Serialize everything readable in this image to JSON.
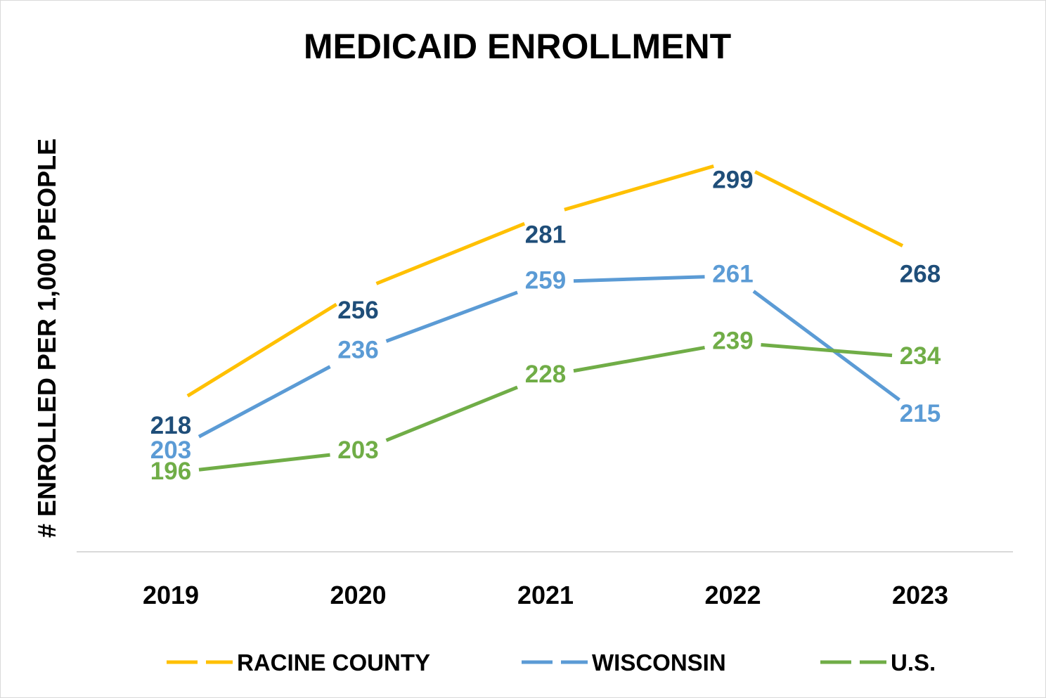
{
  "chart_data": {
    "type": "line",
    "title": "MEDICAID ENROLLMENT",
    "xlabel": "",
    "ylabel": "# ENROLLED PER 1,000 PEOPLE",
    "categories": [
      "2019",
      "2020",
      "2021",
      "2022",
      "2023"
    ],
    "ylim": [
      170,
      310
    ],
    "grid": false,
    "legend": "bottom",
    "series": [
      {
        "name": "RACINE COUNTY",
        "values": [
          218,
          256,
          281,
          299,
          268
        ],
        "color": "#FFC000",
        "label_color": "#1F4E79",
        "label_position": "below"
      },
      {
        "name": "WISCONSIN",
        "values": [
          203,
          236,
          259,
          261,
          215
        ],
        "color": "#5B9BD5",
        "label_color": "#5B9BD5",
        "label_position": "center"
      },
      {
        "name": "U.S.",
        "values": [
          196,
          203,
          228,
          239,
          234
        ],
        "color": "#70AD47",
        "label_color": "#70AD47",
        "label_position": "center"
      }
    ]
  }
}
